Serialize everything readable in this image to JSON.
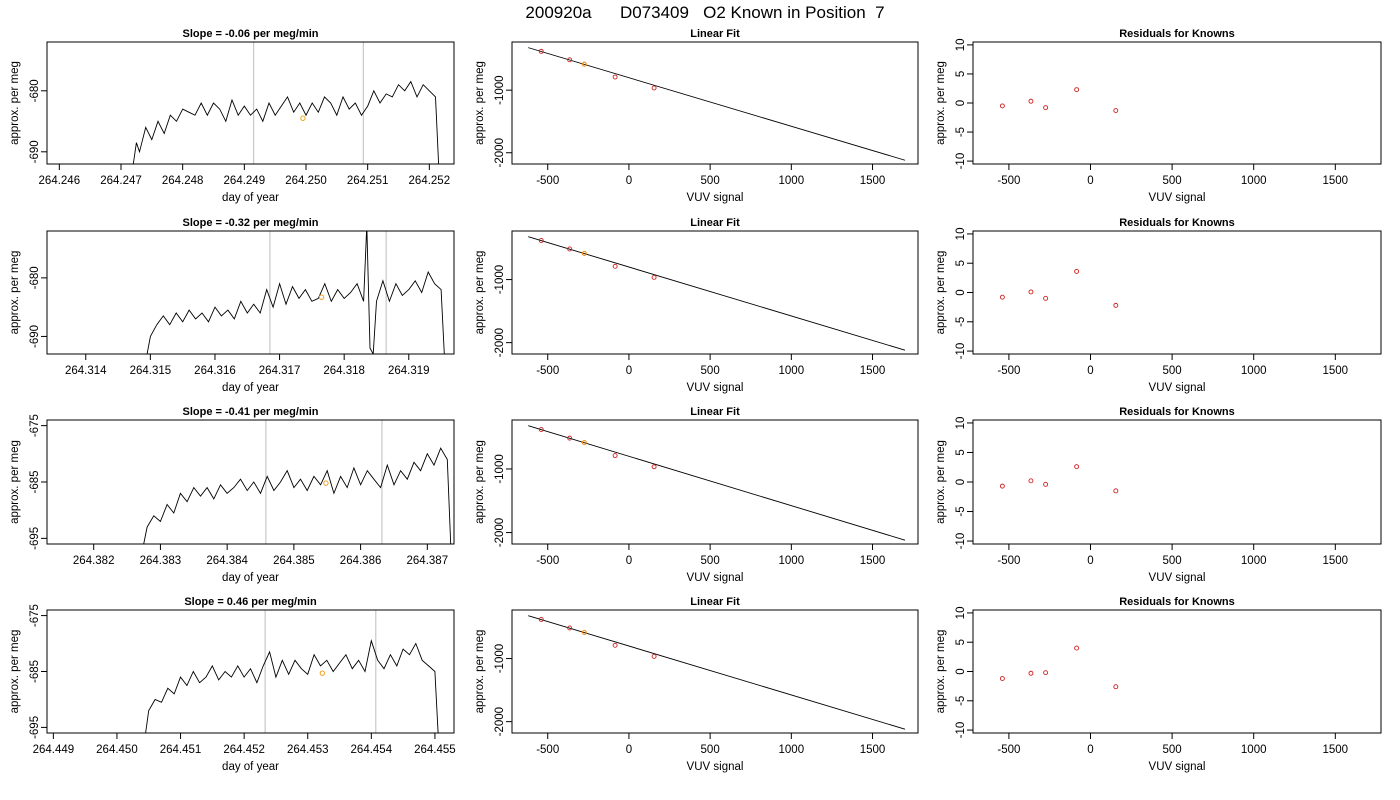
{
  "figure": {
    "title": "200920a      D073409   O2 Known in Position  7"
  },
  "chart_data": [
    {
      "type": "line",
      "row": 0,
      "panel": "timeseries",
      "title": "Slope =  -0.06  per meg/min",
      "xlabel": "day of year",
      "ylabel": "approx. per meg",
      "xlim": [
        264.2458,
        264.2524
      ],
      "ylim": [
        -692,
        -672
      ],
      "xticks": [
        264.246,
        264.247,
        264.248,
        264.249,
        264.25,
        264.251,
        264.252
      ],
      "xtick_labels": [
        "264.246",
        "264.247",
        "264.248",
        "264.249",
        "264.250",
        "264.251",
        "264.252"
      ],
      "yticks": [
        -680,
        -690
      ],
      "ytick_labels": [
        "-680",
        "-690"
      ],
      "vlines": [
        264.24915,
        264.25093
      ],
      "series": [
        {
          "x": [
            264.2472,
            264.24725,
            264.2473,
            264.2474,
            264.2475,
            264.2476,
            264.2477,
            264.2478,
            264.2479,
            264.248,
            264.2481,
            264.2482,
            264.2483,
            264.2484,
            264.2485,
            264.2486,
            264.2487,
            264.2488,
            264.2489,
            264.249,
            264.2491,
            264.2492,
            264.2493,
            264.2494,
            264.2495,
            264.2496,
            264.2497,
            264.2498,
            264.2499,
            264.25,
            264.2501,
            264.2502,
            264.2503,
            264.2504,
            264.2505,
            264.2506,
            264.2507,
            264.2508,
            264.2509,
            264.251,
            264.2511,
            264.2512,
            264.2513,
            264.2514,
            264.2515,
            264.2516,
            264.2517,
            264.2518,
            264.2519,
            264.2521,
            264.25215
          ],
          "y": [
            -692,
            -688.5,
            -690,
            -686,
            -688,
            -685,
            -687,
            -684,
            -685,
            -683,
            -683.5,
            -684,
            -682,
            -684,
            -682,
            -683,
            -685,
            -681.5,
            -684,
            -682.5,
            -684,
            -683,
            -685,
            -682,
            -684,
            -682.5,
            -681,
            -683.5,
            -682,
            -684,
            -682,
            -683.5,
            -681,
            -682,
            -684,
            -681,
            -683,
            -682,
            -684,
            -682.5,
            -680,
            -682,
            -680.5,
            -681,
            -679,
            -680,
            -678.5,
            -681,
            -679,
            -681,
            -692
          ]
        }
      ],
      "marker": {
        "x": 264.24995,
        "y": -684.5,
        "color": "#f0a020"
      }
    },
    {
      "type": "line",
      "row": 0,
      "panel": "fit",
      "title": "Linear Fit",
      "xlabel": "VUV signal",
      "ylabel": "approx. per meg",
      "xlim": [
        -720,
        1780
      ],
      "ylim": [
        -2180,
        -230
      ],
      "xticks": [
        -500,
        0,
        500,
        1000,
        1500
      ],
      "xtick_labels": [
        "-500",
        "0",
        "500",
        "1000",
        "1500"
      ],
      "yticks": [
        -1000,
        -2000
      ],
      "ytick_labels": [
        "-1000",
        "-2000"
      ],
      "fit_line": {
        "x": [
          -620,
          1700
        ],
        "y": [
          -320,
          -2120
        ]
      },
      "points": {
        "x": [
          -540,
          -365,
          -275,
          -85,
          155
        ],
        "y": [
          -380,
          -515,
          -585,
          -790,
          -965
        ]
      },
      "unknown": {
        "x": -275,
        "y": -585
      }
    },
    {
      "type": "scatter",
      "row": 0,
      "panel": "residuals",
      "title": "Residuals for Knowns",
      "xlabel": "VUV signal",
      "ylabel": "",
      "xlim": [
        -720,
        1780
      ],
      "ylim": [
        -10.5,
        10.5
      ],
      "xticks": [
        -500,
        0,
        500,
        1000,
        1500
      ],
      "xtick_labels": [
        "-500",
        "0",
        "500",
        "1000",
        "1500"
      ],
      "yticks": [
        10,
        5,
        0,
        -5,
        -10
      ],
      "ytick_labels": [
        "10",
        "5",
        "0",
        "-5",
        "-10"
      ],
      "points": {
        "x": [
          -540,
          -365,
          -275,
          -85,
          155
        ],
        "y": [
          -0.5,
          0.3,
          -0.8,
          2.3,
          -1.3
        ]
      }
    },
    {
      "type": "line",
      "row": 1,
      "panel": "timeseries",
      "title": "Slope =  -0.32  per meg/min",
      "xlabel": "day of year",
      "ylabel": "approx. per meg",
      "xlim": [
        264.3134,
        264.3197
      ],
      "ylim": [
        -693,
        -672
      ],
      "xticks": [
        264.314,
        264.315,
        264.316,
        264.317,
        264.318,
        264.319
      ],
      "xtick_labels": [
        "264.314",
        "264.315",
        "264.316",
        "264.317",
        "264.318",
        "264.319"
      ],
      "yticks": [
        -680,
        -690
      ],
      "ytick_labels": [
        "-680",
        "-690"
      ],
      "vlines": [
        264.31685,
        264.31865
      ],
      "series": [
        {
          "x": [
            264.31495,
            264.315,
            264.3151,
            264.3152,
            264.3153,
            264.3154,
            264.3155,
            264.3156,
            264.3157,
            264.3158,
            264.3159,
            264.316,
            264.3161,
            264.3162,
            264.3163,
            264.3164,
            264.3165,
            264.3166,
            264.3167,
            264.3168,
            264.3169,
            264.317,
            264.3171,
            264.3172,
            264.3173,
            264.3174,
            264.3175,
            264.3176,
            264.3177,
            264.3178,
            264.3179,
            264.318,
            264.3181,
            264.3182,
            264.3183,
            264.31835,
            264.3184,
            264.31845,
            264.3185,
            264.3186,
            264.3187,
            264.3188,
            264.3189,
            264.319,
            264.3191,
            264.3192,
            264.3193,
            264.3194,
            264.3195,
            264.31955
          ],
          "y": [
            -693,
            -690,
            -688,
            -686.5,
            -688,
            -686,
            -687.5,
            -685.5,
            -687,
            -686,
            -687.5,
            -685,
            -686.5,
            -685.5,
            -687,
            -684,
            -686,
            -684.5,
            -686,
            -682,
            -685,
            -681,
            -684.5,
            -681.5,
            -683.5,
            -682,
            -684,
            -683.5,
            -681,
            -684,
            -682,
            -683.5,
            -682.5,
            -681,
            -684,
            -671,
            -692,
            -693,
            -684,
            -680.5,
            -684,
            -681,
            -683,
            -682,
            -680.5,
            -682.5,
            -679,
            -681,
            -682,
            -693
          ]
        }
      ],
      "marker": {
        "x": 264.31765,
        "y": -683.3,
        "color": "#f0a020"
      }
    },
    {
      "type": "line",
      "row": 1,
      "panel": "fit",
      "title": "Linear Fit",
      "xlabel": "VUV signal",
      "ylabel": "approx. per meg",
      "xlim": [
        -720,
        1780
      ],
      "ylim": [
        -2180,
        -230
      ],
      "xticks": [
        -500,
        0,
        500,
        1000,
        1500
      ],
      "xtick_labels": [
        "-500",
        "0",
        "500",
        "1000",
        "1500"
      ],
      "yticks": [
        -1000,
        -2000
      ],
      "ytick_labels": [
        "-1000",
        "-2000"
      ],
      "fit_line": {
        "x": [
          -620,
          1700
        ],
        "y": [
          -320,
          -2120
        ]
      },
      "points": {
        "x": [
          -540,
          -365,
          -275,
          -85,
          155
        ],
        "y": [
          -380,
          -515,
          -585,
          -790,
          -965
        ]
      },
      "unknown": {
        "x": -275,
        "y": -585
      }
    },
    {
      "type": "scatter",
      "row": 1,
      "panel": "residuals",
      "title": "Residuals for Knowns",
      "xlabel": "VUV signal",
      "ylabel": "",
      "xlim": [
        -720,
        1780
      ],
      "ylim": [
        -10.5,
        10.5
      ],
      "xticks": [
        -500,
        0,
        500,
        1000,
        1500
      ],
      "xtick_labels": [
        "-500",
        "0",
        "500",
        "1000",
        "1500"
      ],
      "yticks": [
        10,
        5,
        0,
        -5,
        -10
      ],
      "ytick_labels": [
        "10",
        "5",
        "0",
        "-5",
        "-10"
      ],
      "points": {
        "x": [
          -540,
          -365,
          -275,
          -85,
          155
        ],
        "y": [
          -0.8,
          0.1,
          -1.0,
          3.6,
          -2.2
        ]
      }
    },
    {
      "type": "line",
      "row": 2,
      "panel": "timeseries",
      "title": "Slope =  -0.41  per meg/min",
      "xlabel": "day of year",
      "ylabel": "approx. per meg",
      "xlim": [
        264.3813,
        264.3874
      ],
      "ylim": [
        -696,
        -674
      ],
      "xticks": [
        264.382,
        264.383,
        264.384,
        264.385,
        264.386,
        264.387
      ],
      "xtick_labels": [
        "264.382",
        "264.383",
        "264.384",
        "264.385",
        "264.386",
        "264.387"
      ],
      "yticks": [
        -675,
        -685,
        -695
      ],
      "ytick_labels": [
        "-675",
        "-685",
        "-695"
      ],
      "vlines": [
        264.38458,
        264.38632
      ],
      "series": [
        {
          "x": [
            264.38275,
            264.3828,
            264.3829,
            264.383,
            264.3831,
            264.3832,
            264.3833,
            264.3834,
            264.3835,
            264.3836,
            264.3837,
            264.3838,
            264.3839,
            264.384,
            264.3841,
            264.3842,
            264.3843,
            264.3844,
            264.3845,
            264.3846,
            264.3847,
            264.3848,
            264.3849,
            264.385,
            264.3851,
            264.3852,
            264.3853,
            264.3854,
            264.3855,
            264.3856,
            264.3857,
            264.3858,
            264.3859,
            264.386,
            264.3861,
            264.3862,
            264.3863,
            264.3864,
            264.3865,
            264.3866,
            264.3867,
            264.3868,
            264.3869,
            264.387,
            264.3871,
            264.3872,
            264.3873,
            264.38735
          ],
          "y": [
            -696,
            -693,
            -691,
            -692,
            -689,
            -690.5,
            -687,
            -688.5,
            -686,
            -687.5,
            -686,
            -688,
            -685.5,
            -687,
            -686,
            -684.5,
            -686.5,
            -685,
            -687,
            -684,
            -686.5,
            -685,
            -683,
            -686,
            -684.5,
            -686.5,
            -684,
            -685.5,
            -683,
            -687,
            -684,
            -686,
            -682.5,
            -685.5,
            -683,
            -684.5,
            -686,
            -682,
            -685.5,
            -683,
            -684.5,
            -681.5,
            -683,
            -680,
            -682,
            -679,
            -681,
            -696
          ]
        }
      ],
      "marker": {
        "x": 264.38548,
        "y": -685.2,
        "color": "#f0a020"
      }
    },
    {
      "type": "line",
      "row": 2,
      "panel": "fit",
      "title": "Linear Fit",
      "xlabel": "VUV signal",
      "ylabel": "approx. per meg",
      "xlim": [
        -720,
        1780
      ],
      "ylim": [
        -2180,
        -230
      ],
      "xticks": [
        -500,
        0,
        500,
        1000,
        1500
      ],
      "xtick_labels": [
        "-500",
        "0",
        "500",
        "1000",
        "1500"
      ],
      "yticks": [
        -1000,
        -2000
      ],
      "ytick_labels": [
        "-1000",
        "-2000"
      ],
      "fit_line": {
        "x": [
          -620,
          1700
        ],
        "y": [
          -320,
          -2120
        ]
      },
      "points": {
        "x": [
          -540,
          -365,
          -275,
          -85,
          155
        ],
        "y": [
          -380,
          -515,
          -585,
          -790,
          -965
        ]
      },
      "unknown": {
        "x": -275,
        "y": -585
      }
    },
    {
      "type": "scatter",
      "row": 2,
      "panel": "residuals",
      "title": "Residuals for Knowns",
      "xlabel": "VUV signal",
      "ylabel": "",
      "xlim": [
        -720,
        1780
      ],
      "ylim": [
        -10.5,
        10.5
      ],
      "xticks": [
        -500,
        0,
        500,
        1000,
        1500
      ],
      "xtick_labels": [
        "-500",
        "0",
        "500",
        "1000",
        "1500"
      ],
      "yticks": [
        10,
        5,
        0,
        -5,
        -10
      ],
      "ytick_labels": [
        "10",
        "5",
        "0",
        "-5",
        "-10"
      ],
      "points": {
        "x": [
          -540,
          -365,
          -275,
          -85,
          155
        ],
        "y": [
          -0.7,
          0.2,
          -0.4,
          2.6,
          -1.5
        ]
      }
    },
    {
      "type": "line",
      "row": 3,
      "panel": "timeseries",
      "title": "Slope =  0.46  per meg/min",
      "xlabel": "day of year",
      "ylabel": "approx. per meg",
      "xlim": [
        264.4489,
        264.4553
      ],
      "ylim": [
        -696,
        -674
      ],
      "xticks": [
        264.449,
        264.45,
        264.451,
        264.452,
        264.453,
        264.454,
        264.455
      ],
      "xtick_labels": [
        "264.449",
        "264.450",
        "264.451",
        "264.452",
        "264.453",
        "264.454",
        "264.455"
      ],
      "yticks": [
        -675,
        -685,
        -695
      ],
      "ytick_labels": [
        "-675",
        "-685",
        "-695"
      ],
      "vlines": [
        264.45233,
        264.45407
      ],
      "series": [
        {
          "x": [
            264.45045,
            264.4505,
            264.4506,
            264.4507,
            264.4508,
            264.4509,
            264.451,
            264.4511,
            264.4512,
            264.4513,
            264.4514,
            264.4515,
            264.4516,
            264.4517,
            264.4518,
            264.4519,
            264.452,
            264.4521,
            264.4522,
            264.4523,
            264.4524,
            264.4525,
            264.4526,
            264.4527,
            264.4528,
            264.4529,
            264.453,
            264.4531,
            264.4532,
            264.4533,
            264.4534,
            264.4535,
            264.4536,
            264.4537,
            264.4538,
            264.4539,
            264.454,
            264.4541,
            264.4542,
            264.4543,
            264.4544,
            264.4545,
            264.4546,
            264.4547,
            264.4548,
            264.4549,
            264.455,
            264.45505
          ],
          "y": [
            -696,
            -692,
            -690,
            -690.5,
            -688,
            -689,
            -686,
            -687.5,
            -685,
            -687,
            -686,
            -684,
            -686.5,
            -685,
            -686,
            -684,
            -686,
            -684.5,
            -687,
            -684,
            -681.5,
            -686,
            -683,
            -685.5,
            -683,
            -684.5,
            -685.5,
            -682,
            -684,
            -683,
            -685,
            -683.5,
            -682,
            -684.5,
            -683,
            -685,
            -679.5,
            -683,
            -684.5,
            -682,
            -684,
            -681,
            -682,
            -680,
            -683,
            -684,
            -685,
            -696
          ]
        }
      ],
      "marker": {
        "x": 264.45323,
        "y": -685.3,
        "color": "#f0a020"
      }
    },
    {
      "type": "line",
      "row": 3,
      "panel": "fit",
      "title": "Linear Fit",
      "xlabel": "VUV signal",
      "ylabel": "approx. per meg",
      "xlim": [
        -720,
        1780
      ],
      "ylim": [
        -2180,
        -230
      ],
      "xticks": [
        -500,
        0,
        500,
        1000,
        1500
      ],
      "xtick_labels": [
        "-500",
        "0",
        "500",
        "1000",
        "1500"
      ],
      "yticks": [
        -1000,
        -2000
      ],
      "ytick_labels": [
        "-1000",
        "-2000"
      ],
      "fit_line": {
        "x": [
          -620,
          1700
        ],
        "y": [
          -320,
          -2120
        ]
      },
      "points": {
        "x": [
          -540,
          -365,
          -275,
          -85,
          155
        ],
        "y": [
          -380,
          -515,
          -585,
          -790,
          -965
        ]
      },
      "unknown": {
        "x": -275,
        "y": -585
      }
    },
    {
      "type": "scatter",
      "row": 3,
      "panel": "residuals",
      "title": "Residuals for Knowns",
      "xlabel": "VUV signal",
      "ylabel": "",
      "xlim": [
        -720,
        1780
      ],
      "ylim": [
        -10.5,
        10.5
      ],
      "xticks": [
        -500,
        0,
        500,
        1000,
        1500
      ],
      "xtick_labels": [
        "-500",
        "0",
        "500",
        "1000",
        "1500"
      ],
      "yticks": [
        10,
        5,
        0,
        -5,
        -10
      ],
      "ytick_labels": [
        "10",
        "5",
        "0",
        "-5",
        "-10"
      ],
      "points": {
        "x": [
          -540,
          -365,
          -275,
          -85,
          155
        ],
        "y": [
          -1.2,
          -0.3,
          -0.2,
          4.0,
          -2.6
        ]
      }
    }
  ]
}
